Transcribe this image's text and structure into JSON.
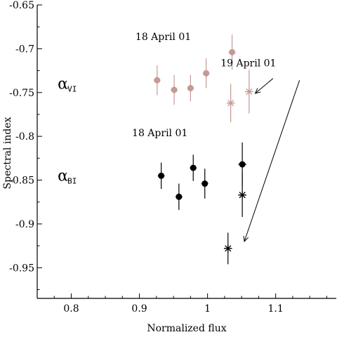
{
  "chart_data": {
    "type": "scatter",
    "title": "",
    "xlabel": "Normalized  flux",
    "ylabel": "Spectral index",
    "xlim": [
      0.75,
      1.19
    ],
    "ylim": [
      -0.985,
      -0.65
    ],
    "x_ticks": [
      0.8,
      0.9,
      1.0,
      1.1
    ],
    "x_tick_labels": [
      "0.8",
      "0.9",
      "1",
      "1.1"
    ],
    "y_ticks": [
      -0.65,
      -0.7,
      -0.75,
      -0.8,
      -0.85,
      -0.9,
      -0.95
    ],
    "y_tick_labels": [
      "-0.65",
      "-0.7",
      "-0.75",
      "-0.8",
      "-0.85",
      "-0.9",
      "-0.95"
    ],
    "grid": false,
    "colors": {
      "vi": "#c49a94",
      "bi": "#000000"
    },
    "series": [
      {
        "group": "vi",
        "marker": "circle",
        "points": [
          {
            "x": 0.926,
            "y": -0.736,
            "xerr": 0.005,
            "yerr": 0.017
          },
          {
            "x": 0.951,
            "y": -0.747,
            "xerr": 0.005,
            "yerr": 0.017
          },
          {
            "x": 0.975,
            "y": -0.745,
            "xerr": 0.005,
            "yerr": 0.015
          },
          {
            "x": 0.998,
            "y": -0.728,
            "xerr": 0.005,
            "yerr": 0.017
          },
          {
            "x": 1.036,
            "y": -0.704,
            "xerr": 0.005,
            "yerr": 0.02
          }
        ]
      },
      {
        "group": "vi",
        "marker": "star",
        "points": [
          {
            "x": 1.034,
            "y": -0.762,
            "xerr": 0.006,
            "yerr": 0.022
          },
          {
            "x": 1.061,
            "y": -0.749,
            "xerr": 0.006,
            "yerr": 0.025
          }
        ]
      },
      {
        "group": "bi",
        "marker": "circle",
        "points": [
          {
            "x": 0.932,
            "y": -0.845,
            "xerr": 0.005,
            "yerr": 0.015
          },
          {
            "x": 0.958,
            "y": -0.869,
            "xerr": 0.005,
            "yerr": 0.015
          },
          {
            "x": 0.979,
            "y": -0.836,
            "xerr": 0.005,
            "yerr": 0.015
          },
          {
            "x": 0.996,
            "y": -0.854,
            "xerr": 0.005,
            "yerr": 0.017
          },
          {
            "x": 1.051,
            "y": -0.832,
            "xerr": 0.006,
            "yerr": 0.025
          }
        ]
      },
      {
        "group": "bi",
        "marker": "star",
        "points": [
          {
            "x": 1.051,
            "y": -0.867,
            "xerr": 0.006,
            "yerr": 0.025
          },
          {
            "x": 1.03,
            "y": -0.928,
            "xerr": 0.006,
            "yerr": 0.018
          }
        ]
      }
    ],
    "annotations": {
      "vi_date": {
        "text": "18 April 01",
        "x": 0.935,
        "y": -0.69
      },
      "bi_date": {
        "text": "18 April 01",
        "x": 0.93,
        "y": -0.8
      },
      "vi_label": {
        "main": "α",
        "sub": "VI",
        "x": 0.78,
        "y": -0.74
      },
      "bi_label": {
        "main": "α",
        "sub": "BI",
        "x": 0.78,
        "y": -0.845
      },
      "second_date": {
        "text": "19 April 01",
        "x": 1.06,
        "y": -0.72
      },
      "arrows": [
        {
          "from": [
            1.096,
            -0.734
          ],
          "to": [
            1.07,
            -0.751
          ]
        },
        {
          "from": [
            1.135,
            -0.736
          ],
          "to": [
            1.054,
            -0.92
          ]
        }
      ]
    }
  }
}
